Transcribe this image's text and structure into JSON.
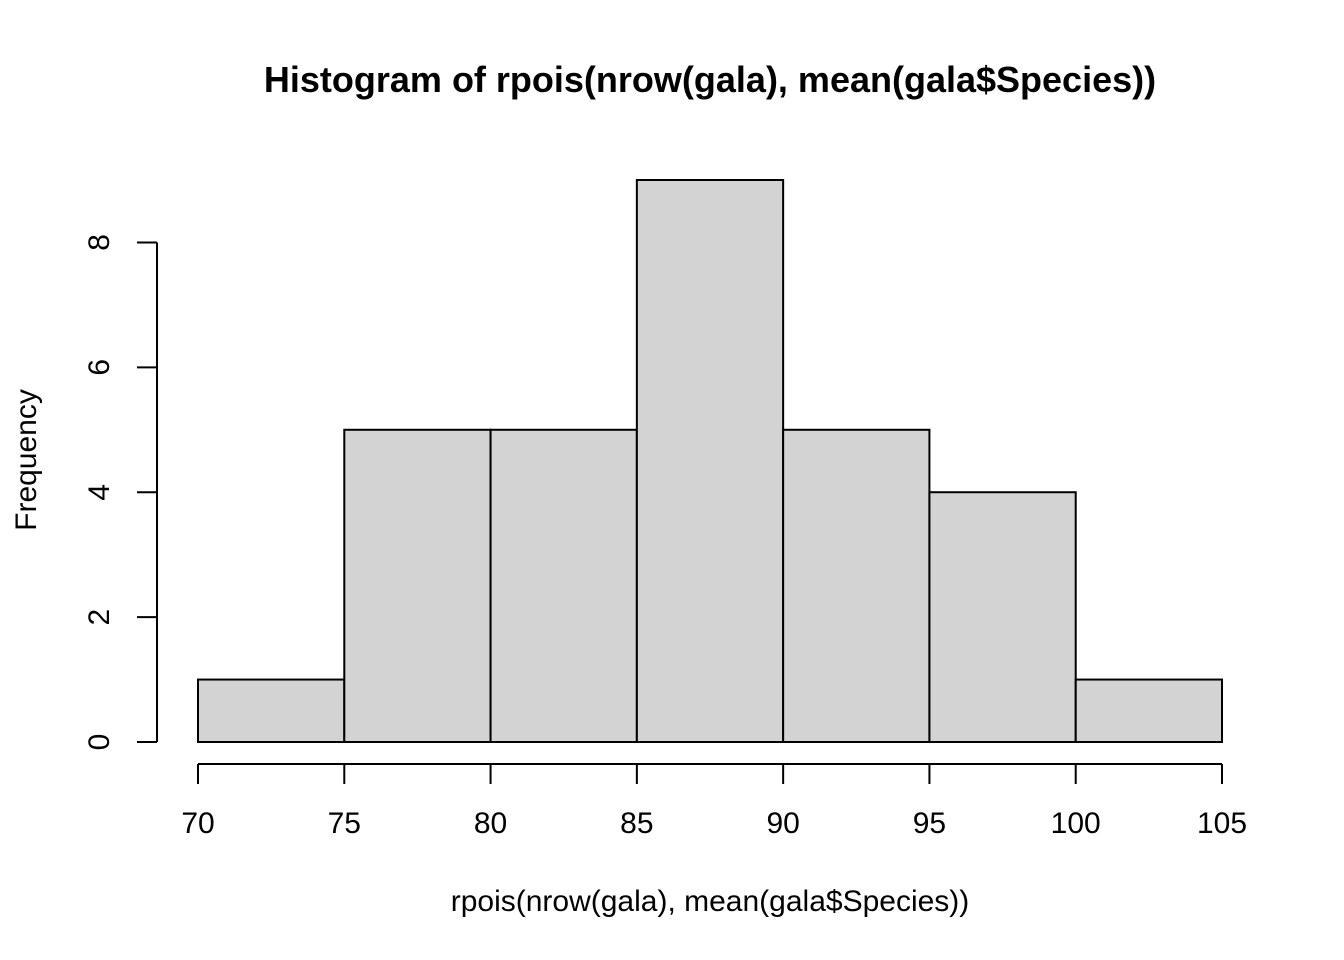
{
  "chart_data": {
    "type": "bar",
    "title": "Histogram of rpois(nrow(gala), mean(gala$Species))",
    "xlabel": "rpois(nrow(gala), mean(gala$Species))",
    "ylabel": "Frequency",
    "bins": [
      {
        "start": 70,
        "end": 75,
        "count": 1
      },
      {
        "start": 75,
        "end": 80,
        "count": 5
      },
      {
        "start": 80,
        "end": 85,
        "count": 5
      },
      {
        "start": 85,
        "end": 90,
        "count": 9
      },
      {
        "start": 90,
        "end": 95,
        "count": 5
      },
      {
        "start": 95,
        "end": 100,
        "count": 4
      },
      {
        "start": 100,
        "end": 105,
        "count": 1
      }
    ],
    "x_ticks": [
      70,
      75,
      80,
      85,
      90,
      95,
      100,
      105
    ],
    "y_ticks": [
      0,
      2,
      4,
      6,
      8
    ],
    "xlim": [
      70,
      105
    ],
    "ylim": [
      0,
      9
    ],
    "grid": false,
    "bar_color": "#d3d3d3",
    "edge_color": "#000000"
  }
}
